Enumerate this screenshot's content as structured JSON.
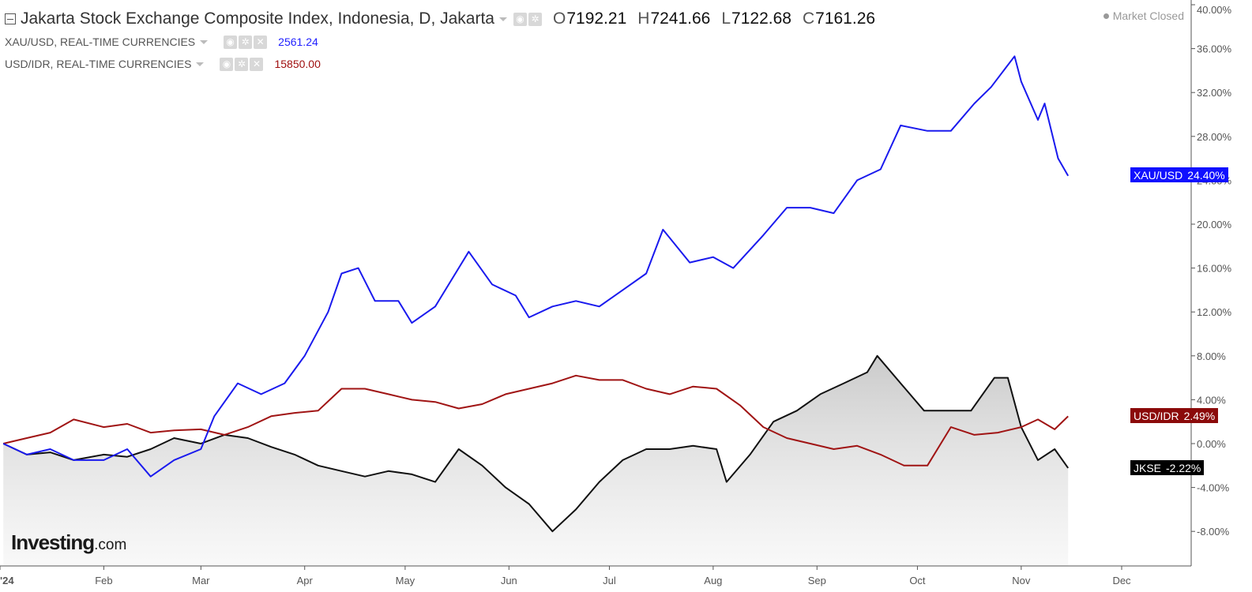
{
  "header": {
    "main": {
      "title": "Jakarta Stock Exchange Composite Index, Indonesia, D, Jakarta",
      "open_label": "O",
      "open": "7192.21",
      "high_label": "H",
      "high": "7241.66",
      "low_label": "L",
      "low": "7122.68",
      "close_label": "C",
      "close": "7161.26"
    },
    "xau": {
      "name": "XAU/USD, REAL-TIME CURRENCIES",
      "value": "2561.24",
      "color": "#2222ff"
    },
    "idr": {
      "name": "USD/IDR, REAL-TIME CURRENCIES",
      "value": "15850.00",
      "color": "#a01010"
    },
    "status": "Market Closed"
  },
  "logo": {
    "text": "Investing",
    "domain": ".com"
  },
  "tags": {
    "xau": {
      "label": "XAU/USD",
      "value": "24.40%"
    },
    "idr": {
      "label": "USD/IDR",
      "value": "2.49%"
    },
    "jkse": {
      "label": "JKSE",
      "value": "-2.22%"
    }
  },
  "chart_data": {
    "type": "line",
    "y_unit": "%",
    "ylim": [
      -11,
      40
    ],
    "y_ticks": [
      40,
      36,
      32,
      28,
      24,
      20,
      16,
      12,
      8,
      4,
      0,
      -4,
      -8
    ],
    "y_tick_labels": [
      "40.00%",
      "36.00%",
      "32.00%",
      "28.00%",
      "24.00%",
      "20.00%",
      "16.00%",
      "12.00%",
      "8.00%",
      "4.00%",
      "0.00%",
      "-4.00%",
      "-8.00%"
    ],
    "x_ticks": [
      {
        "label": "'24",
        "date": "2024-01-01"
      },
      {
        "label": "Feb",
        "date": "2024-02-01"
      },
      {
        "label": "Mar",
        "date": "2024-03-01"
      },
      {
        "label": "Apr",
        "date": "2024-04-01"
      },
      {
        "label": "May",
        "date": "2024-05-01"
      },
      {
        "label": "Jun",
        "date": "2024-06-01"
      },
      {
        "label": "Jul",
        "date": "2024-07-01"
      },
      {
        "label": "Aug",
        "date": "2024-08-01"
      },
      {
        "label": "Sep",
        "date": "2024-09-01"
      },
      {
        "label": "Oct",
        "date": "2024-10-01"
      },
      {
        "label": "Nov",
        "date": "2024-11-01"
      },
      {
        "label": "Dec",
        "date": "2024-12-01"
      }
    ],
    "x_range": [
      "2024-01-01",
      "2024-12-15"
    ],
    "grid": false,
    "series": [
      {
        "name": "XAU/USD",
        "color": "#1a1aee",
        "points": [
          [
            "2024-01-02",
            0
          ],
          [
            "2024-01-09",
            -1.0
          ],
          [
            "2024-01-16",
            -0.5
          ],
          [
            "2024-01-23",
            -1.5
          ],
          [
            "2024-02-01",
            -1.5
          ],
          [
            "2024-02-08",
            -0.5
          ],
          [
            "2024-02-15",
            -3.0
          ],
          [
            "2024-02-22",
            -1.5
          ],
          [
            "2024-03-01",
            -0.5
          ],
          [
            "2024-03-05",
            2.5
          ],
          [
            "2024-03-12",
            5.5
          ],
          [
            "2024-03-19",
            4.5
          ],
          [
            "2024-03-26",
            5.5
          ],
          [
            "2024-04-01",
            8.0
          ],
          [
            "2024-04-08",
            12.0
          ],
          [
            "2024-04-12",
            15.5
          ],
          [
            "2024-04-17",
            16.0
          ],
          [
            "2024-04-22",
            13.0
          ],
          [
            "2024-04-29",
            13.0
          ],
          [
            "2024-05-03",
            11.0
          ],
          [
            "2024-05-10",
            12.5
          ],
          [
            "2024-05-17",
            16.0
          ],
          [
            "2024-05-20",
            17.5
          ],
          [
            "2024-05-27",
            14.5
          ],
          [
            "2024-06-03",
            13.5
          ],
          [
            "2024-06-07",
            11.5
          ],
          [
            "2024-06-14",
            12.5
          ],
          [
            "2024-06-21",
            13.0
          ],
          [
            "2024-06-28",
            12.5
          ],
          [
            "2024-07-05",
            14.0
          ],
          [
            "2024-07-12",
            15.5
          ],
          [
            "2024-07-17",
            19.5
          ],
          [
            "2024-07-25",
            16.5
          ],
          [
            "2024-08-01",
            17.0
          ],
          [
            "2024-08-07",
            16.0
          ],
          [
            "2024-08-16",
            19.0
          ],
          [
            "2024-08-23",
            21.5
          ],
          [
            "2024-08-30",
            21.5
          ],
          [
            "2024-09-06",
            21.0
          ],
          [
            "2024-09-13",
            24.0
          ],
          [
            "2024-09-20",
            25.0
          ],
          [
            "2024-09-26",
            29.0
          ],
          [
            "2024-10-04",
            28.5
          ],
          [
            "2024-10-11",
            28.5
          ],
          [
            "2024-10-18",
            31.0
          ],
          [
            "2024-10-23",
            32.5
          ],
          [
            "2024-10-30",
            35.3
          ],
          [
            "2024-11-01",
            33.0
          ],
          [
            "2024-11-06",
            29.5
          ],
          [
            "2024-11-08",
            31.0
          ],
          [
            "2024-11-12",
            26.0
          ],
          [
            "2024-11-15",
            24.4
          ]
        ]
      },
      {
        "name": "USD/IDR",
        "color": "#a01414",
        "points": [
          [
            "2024-01-02",
            0
          ],
          [
            "2024-01-09",
            0.5
          ],
          [
            "2024-01-16",
            1.0
          ],
          [
            "2024-01-23",
            2.2
          ],
          [
            "2024-02-01",
            1.5
          ],
          [
            "2024-02-08",
            1.8
          ],
          [
            "2024-02-15",
            1.0
          ],
          [
            "2024-02-22",
            1.2
          ],
          [
            "2024-03-01",
            1.3
          ],
          [
            "2024-03-08",
            0.8
          ],
          [
            "2024-03-15",
            1.5
          ],
          [
            "2024-03-22",
            2.5
          ],
          [
            "2024-03-29",
            2.8
          ],
          [
            "2024-04-05",
            3.0
          ],
          [
            "2024-04-12",
            5.0
          ],
          [
            "2024-04-19",
            5.0
          ],
          [
            "2024-04-26",
            4.5
          ],
          [
            "2024-05-03",
            4.0
          ],
          [
            "2024-05-10",
            3.8
          ],
          [
            "2024-05-17",
            3.2
          ],
          [
            "2024-05-24",
            3.6
          ],
          [
            "2024-05-31",
            4.5
          ],
          [
            "2024-06-07",
            5.0
          ],
          [
            "2024-06-14",
            5.5
          ],
          [
            "2024-06-21",
            6.2
          ],
          [
            "2024-06-28",
            5.8
          ],
          [
            "2024-07-05",
            5.8
          ],
          [
            "2024-07-12",
            5.0
          ],
          [
            "2024-07-19",
            4.5
          ],
          [
            "2024-07-26",
            5.2
          ],
          [
            "2024-08-02",
            5.0
          ],
          [
            "2024-08-09",
            3.5
          ],
          [
            "2024-08-16",
            1.5
          ],
          [
            "2024-08-23",
            0.5
          ],
          [
            "2024-08-30",
            0.0
          ],
          [
            "2024-09-06",
            -0.5
          ],
          [
            "2024-09-13",
            -0.2
          ],
          [
            "2024-09-20",
            -1.0
          ],
          [
            "2024-09-27",
            -2.0
          ],
          [
            "2024-10-04",
            -2.0
          ],
          [
            "2024-10-11",
            1.5
          ],
          [
            "2024-10-18",
            0.8
          ],
          [
            "2024-10-25",
            1.0
          ],
          [
            "2024-11-01",
            1.5
          ],
          [
            "2024-11-06",
            2.2
          ],
          [
            "2024-11-11",
            1.3
          ],
          [
            "2024-11-15",
            2.49
          ]
        ]
      },
      {
        "name": "JKSE",
        "color": "#111111",
        "area": true,
        "points": [
          [
            "2024-01-02",
            0
          ],
          [
            "2024-01-09",
            -1.0
          ],
          [
            "2024-01-16",
            -0.8
          ],
          [
            "2024-01-23",
            -1.5
          ],
          [
            "2024-02-01",
            -1.0
          ],
          [
            "2024-02-08",
            -1.2
          ],
          [
            "2024-02-15",
            -0.5
          ],
          [
            "2024-02-22",
            0.5
          ],
          [
            "2024-03-01",
            0.0
          ],
          [
            "2024-03-08",
            0.8
          ],
          [
            "2024-03-15",
            0.5
          ],
          [
            "2024-03-22",
            -0.3
          ],
          [
            "2024-03-29",
            -1.0
          ],
          [
            "2024-04-05",
            -2.0
          ],
          [
            "2024-04-12",
            -2.5
          ],
          [
            "2024-04-19",
            -3.0
          ],
          [
            "2024-04-26",
            -2.5
          ],
          [
            "2024-05-03",
            -2.8
          ],
          [
            "2024-05-10",
            -3.5
          ],
          [
            "2024-05-17",
            -0.5
          ],
          [
            "2024-05-24",
            -2.0
          ],
          [
            "2024-05-31",
            -4.0
          ],
          [
            "2024-06-07",
            -5.5
          ],
          [
            "2024-06-14",
            -8.0
          ],
          [
            "2024-06-21",
            -6.0
          ],
          [
            "2024-06-28",
            -3.5
          ],
          [
            "2024-07-05",
            -1.5
          ],
          [
            "2024-07-12",
            -0.5
          ],
          [
            "2024-07-19",
            -0.5
          ],
          [
            "2024-07-26",
            -0.2
          ],
          [
            "2024-08-02",
            -0.5
          ],
          [
            "2024-08-05",
            -3.5
          ],
          [
            "2024-08-12",
            -1.0
          ],
          [
            "2024-08-19",
            2.0
          ],
          [
            "2024-08-26",
            3.0
          ],
          [
            "2024-09-02",
            4.5
          ],
          [
            "2024-09-09",
            5.5
          ],
          [
            "2024-09-16",
            6.5
          ],
          [
            "2024-09-19",
            8.0
          ],
          [
            "2024-09-26",
            5.5
          ],
          [
            "2024-10-03",
            3.0
          ],
          [
            "2024-10-10",
            3.0
          ],
          [
            "2024-10-17",
            3.0
          ],
          [
            "2024-10-24",
            6.0
          ],
          [
            "2024-10-28",
            6.0
          ],
          [
            "2024-11-01",
            1.5
          ],
          [
            "2024-11-06",
            -1.5
          ],
          [
            "2024-11-11",
            -0.5
          ],
          [
            "2024-11-15",
            -2.22
          ]
        ]
      }
    ]
  }
}
